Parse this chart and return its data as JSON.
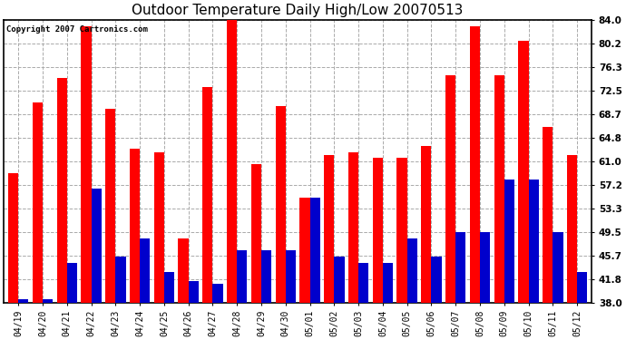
{
  "title": "Outdoor Temperature Daily High/Low 20070513",
  "copyright": "Copyright 2007 Cartronics.com",
  "dates": [
    "04/19",
    "04/20",
    "04/21",
    "04/22",
    "04/23",
    "04/24",
    "04/25",
    "04/26",
    "04/27",
    "04/28",
    "04/29",
    "04/30",
    "05/01",
    "05/02",
    "05/03",
    "05/04",
    "05/05",
    "05/06",
    "05/07",
    "05/08",
    "05/09",
    "05/10",
    "05/11",
    "05/12"
  ],
  "highs": [
    59.0,
    70.5,
    74.5,
    83.0,
    69.5,
    63.0,
    62.5,
    48.5,
    73.0,
    84.5,
    60.5,
    70.0,
    55.0,
    62.0,
    62.5,
    61.5,
    61.5,
    63.5,
    75.0,
    83.0,
    75.0,
    80.5,
    66.5,
    62.0
  ],
  "lows": [
    38.5,
    38.5,
    44.5,
    56.5,
    45.5,
    48.5,
    43.0,
    41.5,
    41.0,
    46.5,
    46.5,
    46.5,
    55.0,
    45.5,
    44.5,
    44.5,
    48.5,
    45.5,
    49.5,
    49.5,
    58.0,
    58.0,
    49.5,
    43.0
  ],
  "high_color": "#FF0000",
  "low_color": "#0000CC",
  "bg_color": "#FFFFFF",
  "plot_bg_color": "#FFFFFF",
  "grid_color": "#AAAAAA",
  "yticks": [
    38.0,
    41.8,
    45.7,
    49.5,
    53.3,
    57.2,
    61.0,
    64.8,
    68.7,
    72.5,
    76.3,
    80.2,
    84.0
  ],
  "ylim": [
    38.0,
    84.0
  ],
  "bar_width": 0.42,
  "ybase": 38.0
}
